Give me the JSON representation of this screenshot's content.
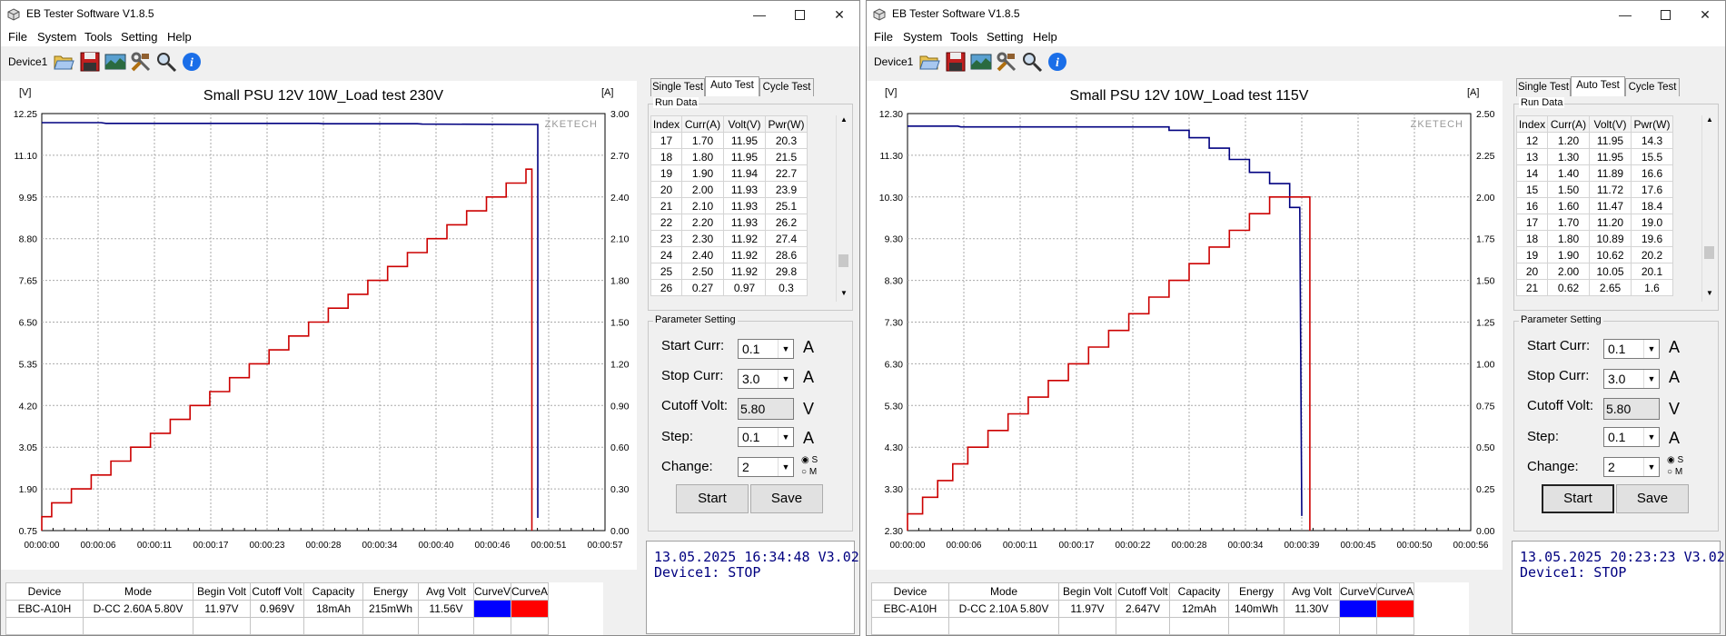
{
  "windows": [
    {
      "title": "EB Tester Software V1.8.5",
      "menu": [
        "File",
        "System",
        "Tools",
        "Setting",
        "Help"
      ],
      "device_label": "Device1",
      "toolbar_icons": [
        "open-folder-icon",
        "save-disk-icon",
        "chart-image-icon",
        "tools-icon",
        "magnifier-icon",
        "info-icon"
      ],
      "tabs": [
        "Single Test",
        "Auto Test",
        "Cycle Test"
      ],
      "active_tab": 1,
      "run_data": {
        "label": "Run Data",
        "headers": [
          "Index",
          "Curr(A)",
          "Volt(V)",
          "Pwr(W)"
        ],
        "rows": [
          [
            "17",
            "1.70",
            "11.95",
            "20.3"
          ],
          [
            "18",
            "1.80",
            "11.95",
            "21.5"
          ],
          [
            "19",
            "1.90",
            "11.94",
            "22.7"
          ],
          [
            "20",
            "2.00",
            "11.93",
            "23.9"
          ],
          [
            "21",
            "2.10",
            "11.93",
            "25.1"
          ],
          [
            "22",
            "2.20",
            "11.93",
            "26.2"
          ],
          [
            "23",
            "2.30",
            "11.92",
            "27.4"
          ],
          [
            "24",
            "2.40",
            "11.92",
            "28.6"
          ],
          [
            "25",
            "2.50",
            "11.92",
            "29.8"
          ],
          [
            "26",
            "0.27",
            "0.97",
            "0.3"
          ]
        ],
        "scroll_thumb_fraction": 0.85
      },
      "params": {
        "label": "Parameter Setting",
        "start_curr": {
          "label": "Start Curr:",
          "value": "0.1",
          "unit": "A"
        },
        "stop_curr": {
          "label": "Stop Curr:",
          "value": "3.0",
          "unit": "A"
        },
        "cutoff_volt": {
          "label": "Cutoff Volt:",
          "value": "5.80",
          "unit": "V"
        },
        "step": {
          "label": "Step:",
          "value": "0.1",
          "unit": "A"
        },
        "change": {
          "label": "Change:",
          "value": "2",
          "opt_s": "S",
          "opt_m": "M"
        },
        "start_btn": "Start",
        "save_btn": "Save",
        "start_focused": false
      },
      "status": {
        "line1": "13.05.2025 16:34:48  V3.02",
        "line2": "Device1: STOP"
      },
      "bottom": {
        "headers": [
          "Device",
          "Mode",
          "Begin Volt",
          "Cutoff Volt",
          "Capacity",
          "Energy",
          "Avg Volt",
          "CurveV",
          "CurveA"
        ],
        "values": [
          "EBC-A10H",
          "D-CC  2.60A  5.80V",
          "11.97V",
          "0.969V",
          "18mAh",
          "215mWh",
          "11.56V",
          "",
          ""
        ],
        "curve_v_color": "#0000ff",
        "curve_a_color": "#ff0000"
      },
      "chart_data": {
        "type": "line",
        "title": "Small PSU 12V 10W_Load test 230V",
        "watermark": "ZKETECH",
        "y_left_unit": "[V]",
        "y_right_unit": "[A]",
        "y_left_ticks": [
          "12.25",
          "11.10",
          "9.95",
          "8.80",
          "7.65",
          "6.50",
          "5.35",
          "4.20",
          "3.05",
          "1.90",
          "0.75"
        ],
        "y_right_ticks": [
          "3.00",
          "2.70",
          "2.40",
          "2.10",
          "1.80",
          "1.50",
          "1.20",
          "0.90",
          "0.60",
          "0.30",
          "0.00"
        ],
        "x_ticks": [
          "00:00:00",
          "00:00:06",
          "00:00:11",
          "00:00:17",
          "00:00:23",
          "00:00:28",
          "00:00:34",
          "00:00:40",
          "00:00:46",
          "00:00:51",
          "00:00:57"
        ],
        "ylim_left": [
          0.75,
          12.25
        ],
        "ylim_right": [
          0,
          3.0
        ],
        "xlim_s": [
          0,
          57
        ],
        "grid": true,
        "series": [
          {
            "color": "#000080",
            "axis": "left",
            "points": [
              [
                0,
                12.0
              ],
              [
                6,
                12.0
              ],
              [
                6.5,
                11.98
              ],
              [
                28,
                11.98
              ],
              [
                28.5,
                11.97
              ],
              [
                38,
                11.97
              ],
              [
                38.5,
                11.96
              ],
              [
                50.2,
                11.95
              ],
              [
                50.2,
                10.2
              ],
              [
                50.2,
                1.1
              ]
            ]
          },
          {
            "color": "#cc0000",
            "axis": "right",
            "points": [
              [
                0,
                0.0
              ],
              [
                0,
                0.1
              ],
              [
                1,
                0.1
              ],
              [
                1,
                0.2
              ],
              [
                3,
                0.2
              ],
              [
                3,
                0.3
              ],
              [
                5,
                0.3
              ],
              [
                5,
                0.4
              ],
              [
                7,
                0.4
              ],
              [
                7,
                0.5
              ],
              [
                9,
                0.5
              ],
              [
                9,
                0.6
              ],
              [
                11,
                0.6
              ],
              [
                11,
                0.7
              ],
              [
                13,
                0.7
              ],
              [
                13,
                0.8
              ],
              [
                15,
                0.8
              ],
              [
                15,
                0.9
              ],
              [
                17,
                0.9
              ],
              [
                17,
                1.0
              ],
              [
                19,
                1.0
              ],
              [
                19,
                1.1
              ],
              [
                21,
                1.1
              ],
              [
                21,
                1.2
              ],
              [
                23,
                1.2
              ],
              [
                23,
                1.3
              ],
              [
                25,
                1.3
              ],
              [
                25,
                1.4
              ],
              [
                27,
                1.4
              ],
              [
                27,
                1.5
              ],
              [
                29,
                1.5
              ],
              [
                29,
                1.6
              ],
              [
                31,
                1.6
              ],
              [
                31,
                1.7
              ],
              [
                33,
                1.7
              ],
              [
                33,
                1.8
              ],
              [
                35,
                1.8
              ],
              [
                35,
                1.9
              ],
              [
                37,
                1.9
              ],
              [
                37,
                2.0
              ],
              [
                39,
                2.0
              ],
              [
                39,
                2.1
              ],
              [
                41,
                2.1
              ],
              [
                41,
                2.2
              ],
              [
                43,
                2.2
              ],
              [
                43,
                2.3
              ],
              [
                45,
                2.3
              ],
              [
                45,
                2.4
              ],
              [
                47,
                2.4
              ],
              [
                47,
                2.5
              ],
              [
                49,
                2.5
              ],
              [
                49,
                2.6
              ],
              [
                49.6,
                2.6
              ],
              [
                49.6,
                0.0
              ]
            ]
          }
        ]
      }
    },
    {
      "title": "EB Tester Software V1.8.5",
      "menu": [
        "File",
        "System",
        "Tools",
        "Setting",
        "Help"
      ],
      "device_label": "Device1",
      "toolbar_icons": [
        "open-folder-icon",
        "save-disk-icon",
        "chart-image-icon",
        "tools-icon",
        "magnifier-icon",
        "info-icon"
      ],
      "tabs": [
        "Single Test",
        "Auto Test",
        "Cycle Test"
      ],
      "active_tab": 1,
      "run_data": {
        "label": "Run Data",
        "headers": [
          "Index",
          "Curr(A)",
          "Volt(V)",
          "Pwr(W)"
        ],
        "rows": [
          [
            "12",
            "1.20",
            "11.95",
            "14.3"
          ],
          [
            "13",
            "1.30",
            "11.95",
            "15.5"
          ],
          [
            "14",
            "1.40",
            "11.89",
            "16.6"
          ],
          [
            "15",
            "1.50",
            "11.72",
            "17.6"
          ],
          [
            "16",
            "1.60",
            "11.47",
            "18.4"
          ],
          [
            "17",
            "1.70",
            "11.20",
            "19.0"
          ],
          [
            "18",
            "1.80",
            "10.89",
            "19.6"
          ],
          [
            "19",
            "1.90",
            "10.62",
            "20.2"
          ],
          [
            "20",
            "2.00",
            "10.05",
            "20.1"
          ],
          [
            "21",
            "0.62",
            "2.65",
            "1.6"
          ]
        ],
        "scroll_thumb_fraction": 0.8
      },
      "params": {
        "label": "Parameter Setting",
        "start_curr": {
          "label": "Start Curr:",
          "value": "0.1",
          "unit": "A"
        },
        "stop_curr": {
          "label": "Stop Curr:",
          "value": "3.0",
          "unit": "A"
        },
        "cutoff_volt": {
          "label": "Cutoff Volt:",
          "value": "5.80",
          "unit": "V"
        },
        "step": {
          "label": "Step:",
          "value": "0.1",
          "unit": "A"
        },
        "change": {
          "label": "Change:",
          "value": "2",
          "opt_s": "S",
          "opt_m": "M"
        },
        "start_btn": "Start",
        "save_btn": "Save",
        "start_focused": true
      },
      "status": {
        "line1": "13.05.2025 20:23:23  V3.02",
        "line2": "Device1: STOP"
      },
      "bottom": {
        "headers": [
          "Device",
          "Mode",
          "Begin Volt",
          "Cutoff Volt",
          "Capacity",
          "Energy",
          "Avg Volt",
          "CurveV",
          "CurveA"
        ],
        "values": [
          "EBC-A10H",
          "D-CC  2.10A  5.80V",
          "11.97V",
          "2.647V",
          "12mAh",
          "140mWh",
          "11.30V",
          "",
          ""
        ],
        "curve_v_color": "#0000ff",
        "curve_a_color": "#ff0000"
      },
      "chart_data": {
        "type": "line",
        "title": "Small PSU 12V 10W_Load test 115V",
        "watermark": "ZKETECH",
        "y_left_unit": "[V]",
        "y_right_unit": "[A]",
        "y_left_ticks": [
          "12.30",
          "11.30",
          "10.30",
          "9.30",
          "8.30",
          "7.30",
          "6.30",
          "5.30",
          "4.30",
          "3.30",
          "2.30"
        ],
        "y_right_ticks": [
          "2.50",
          "2.25",
          "2.00",
          "1.75",
          "1.50",
          "1.25",
          "1.00",
          "0.75",
          "0.50",
          "0.25",
          "0.00"
        ],
        "x_ticks": [
          "00:00:00",
          "00:00:06",
          "00:00:11",
          "00:00:17",
          "00:00:22",
          "00:00:28",
          "00:00:34",
          "00:00:39",
          "00:00:45",
          "00:00:50",
          "00:00:56"
        ],
        "ylim_left": [
          2.3,
          12.3
        ],
        "ylim_right": [
          0,
          2.5
        ],
        "xlim_s": [
          0,
          56
        ],
        "grid": true,
        "series": [
          {
            "color": "#000080",
            "axis": "left",
            "points": [
              [
                0,
                12.0
              ],
              [
                5,
                12.0
              ],
              [
                5.3,
                11.98
              ],
              [
                26,
                11.98
              ],
              [
                26,
                11.9
              ],
              [
                28,
                11.9
              ],
              [
                28,
                11.72
              ],
              [
                30,
                11.72
              ],
              [
                30,
                11.47
              ],
              [
                32,
                11.47
              ],
              [
                32,
                11.2
              ],
              [
                34,
                11.2
              ],
              [
                34,
                10.89
              ],
              [
                36,
                10.89
              ],
              [
                36,
                10.62
              ],
              [
                38,
                10.62
              ],
              [
                38,
                10.05
              ],
              [
                39,
                10.05
              ],
              [
                39.2,
                2.65
              ]
            ]
          },
          {
            "color": "#cc0000",
            "axis": "right",
            "points": [
              [
                0,
                0.0
              ],
              [
                0,
                0.1
              ],
              [
                1.5,
                0.1
              ],
              [
                1.5,
                0.2
              ],
              [
                3,
                0.2
              ],
              [
                3,
                0.3
              ],
              [
                4.5,
                0.3
              ],
              [
                4.5,
                0.4
              ],
              [
                6,
                0.4
              ],
              [
                6,
                0.5
              ],
              [
                8,
                0.5
              ],
              [
                8,
                0.6
              ],
              [
                10,
                0.6
              ],
              [
                10,
                0.7
              ],
              [
                12,
                0.7
              ],
              [
                12,
                0.8
              ],
              [
                14,
                0.8
              ],
              [
                14,
                0.9
              ],
              [
                16,
                0.9
              ],
              [
                16,
                1.0
              ],
              [
                18,
                1.0
              ],
              [
                18,
                1.1
              ],
              [
                20,
                1.1
              ],
              [
                20,
                1.2
              ],
              [
                22,
                1.2
              ],
              [
                22,
                1.3
              ],
              [
                24,
                1.3
              ],
              [
                24,
                1.4
              ],
              [
                26,
                1.4
              ],
              [
                26,
                1.5
              ],
              [
                28,
                1.5
              ],
              [
                28,
                1.6
              ],
              [
                30,
                1.6
              ],
              [
                30,
                1.7
              ],
              [
                32,
                1.7
              ],
              [
                32,
                1.8
              ],
              [
                34,
                1.8
              ],
              [
                34,
                1.9
              ],
              [
                36,
                1.9
              ],
              [
                36,
                2.0
              ],
              [
                40,
                2.0
              ],
              [
                40,
                0.62
              ],
              [
                40,
                0.0
              ]
            ]
          }
        ]
      }
    }
  ]
}
